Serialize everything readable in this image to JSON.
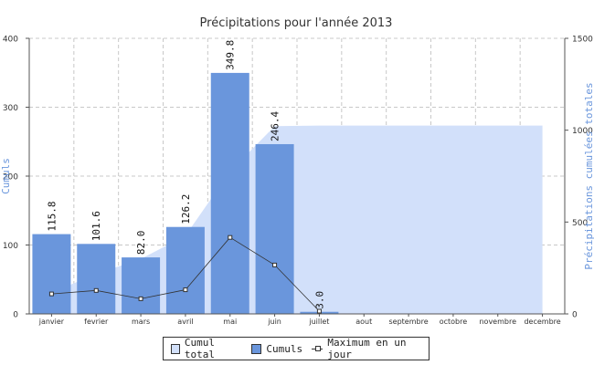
{
  "chart_data": {
    "type": "bar",
    "title": "Précipitations pour l'année 2013",
    "xlabel": "",
    "ylabel": "Cumuls",
    "y2label": "Précipitations cumulées totales",
    "categories": [
      "janvier",
      "fevrier",
      "mars",
      "avril",
      "mai",
      "juin",
      "juillet",
      "aout",
      "septembre",
      "octobre",
      "novembre",
      "decembre"
    ],
    "ylim": [
      0,
      400
    ],
    "y2lim": [
      0,
      1500
    ],
    "yticks": [
      0,
      100,
      200,
      300,
      400
    ],
    "y2ticks": [
      0,
      500,
      1000,
      1500
    ],
    "grid": true,
    "legend_position": "bottom",
    "series": [
      {
        "name": "Cumul total",
        "type": "area",
        "axis": "right",
        "color": "#d2e0fa",
        "values": [
          115.8,
          217.4,
          299.4,
          425.6,
          775.4,
          1021.8,
          1024.8,
          1024.8,
          1024.8,
          1024.8,
          1024.8,
          1024.8
        ]
      },
      {
        "name": "Cumuls",
        "type": "bar",
        "axis": "left",
        "color": "#6a96dc",
        "values": [
          115.8,
          101.6,
          82.0,
          126.2,
          349.8,
          246.4,
          3.0,
          null,
          null,
          null,
          null,
          null
        ],
        "labels": [
          "115.8",
          "101.6",
          "82.0",
          "126.2",
          "349.8",
          "246.4",
          "3.0",
          "",
          "",
          "",
          "",
          ""
        ]
      },
      {
        "name": "Maximum en un jour",
        "type": "line",
        "axis": "left",
        "color": "#333333",
        "values": [
          29,
          34,
          22,
          35,
          111,
          71,
          4,
          null,
          null,
          null,
          null,
          null
        ]
      }
    ]
  },
  "legend": {
    "item1": "Cumul total",
    "item2": "Cumuls",
    "item3": "Maximum en un jour"
  }
}
